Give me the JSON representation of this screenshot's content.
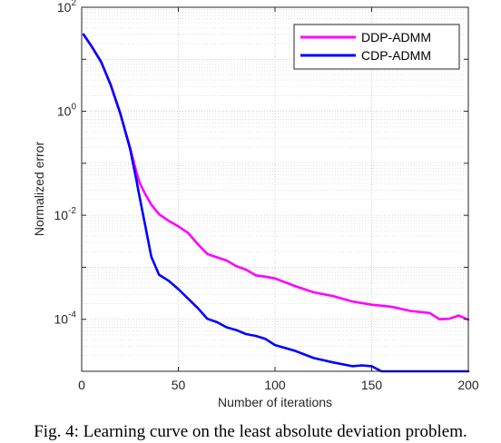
{
  "chart_data": {
    "type": "line",
    "title": "",
    "xlabel": "Number of iterations",
    "ylabel": "Normalized error",
    "xlim": [
      0,
      200
    ],
    "ylim": [
      1e-05,
      100
    ],
    "yscale": "log",
    "xticks": [
      0,
      50,
      100,
      150,
      200
    ],
    "xtick_labels": [
      "0",
      "50",
      "100",
      "150",
      "200"
    ],
    "yticks": [
      0.0001,
      0.01,
      1,
      100
    ],
    "ytick_labels": [
      {
        "base": "10",
        "exp": "-4"
      },
      {
        "base": "10",
        "exp": "-2"
      },
      {
        "base": "10",
        "exp": "0"
      },
      {
        "base": "10",
        "exp": "2"
      }
    ],
    "grid": true,
    "minor_grid": true,
    "legend_position": "top-right",
    "series": [
      {
        "name": "DDP-ADMM",
        "color": "#ff00ff",
        "x": [
          1,
          5,
          10,
          15,
          20,
          25,
          28,
          30,
          33,
          36,
          40,
          45,
          50,
          55,
          60,
          65,
          70,
          75,
          80,
          85,
          90,
          95,
          100,
          110,
          120,
          130,
          140,
          150,
          160,
          170,
          180,
          185,
          190,
          195,
          200
        ],
        "y": [
          30,
          18,
          9,
          3.2,
          0.9,
          0.2,
          0.075,
          0.042,
          0.025,
          0.016,
          0.0105,
          0.0078,
          0.0061,
          0.0046,
          0.0028,
          0.0018,
          0.00155,
          0.00135,
          0.00105,
          0.0009,
          0.0007,
          0.00066,
          0.00061,
          0.00044,
          0.00033,
          0.00028,
          0.00022,
          0.00019,
          0.000175,
          0.000145,
          0.000132,
          0.0001,
          0.000102,
          0.000118,
          9.8e-05
        ]
      },
      {
        "name": "CDP-ADMM",
        "color": "#0000ff",
        "x": [
          1,
          5,
          10,
          15,
          20,
          25,
          28,
          30,
          33,
          36,
          40,
          45,
          50,
          55,
          60,
          65,
          70,
          75,
          80,
          85,
          90,
          95,
          100,
          110,
          120,
          130,
          140,
          145,
          150,
          155,
          160,
          170,
          180,
          185,
          190,
          195,
          200
        ],
        "y": [
          30,
          18,
          9,
          3.2,
          0.9,
          0.19,
          0.055,
          0.022,
          0.006,
          0.0016,
          0.00072,
          0.00055,
          0.00038,
          0.00025,
          0.000165,
          0.000102,
          8.8e-05,
          7e-05,
          6.2e-05,
          5.2e-05,
          4.8e-05,
          4.2e-05,
          3.2e-05,
          2.5e-05,
          1.8e-05,
          1.48e-05,
          1.25e-05,
          1.3e-05,
          1.25e-05,
          9.5e-06,
          8.5e-06,
          8.2e-06,
          6.2e-06,
          5.5e-06,
          5.7e-06,
          6e-06,
          5.5e-06
        ]
      }
    ]
  },
  "caption": "Fig. 4: Learning curve on the least absolute deviation problem."
}
